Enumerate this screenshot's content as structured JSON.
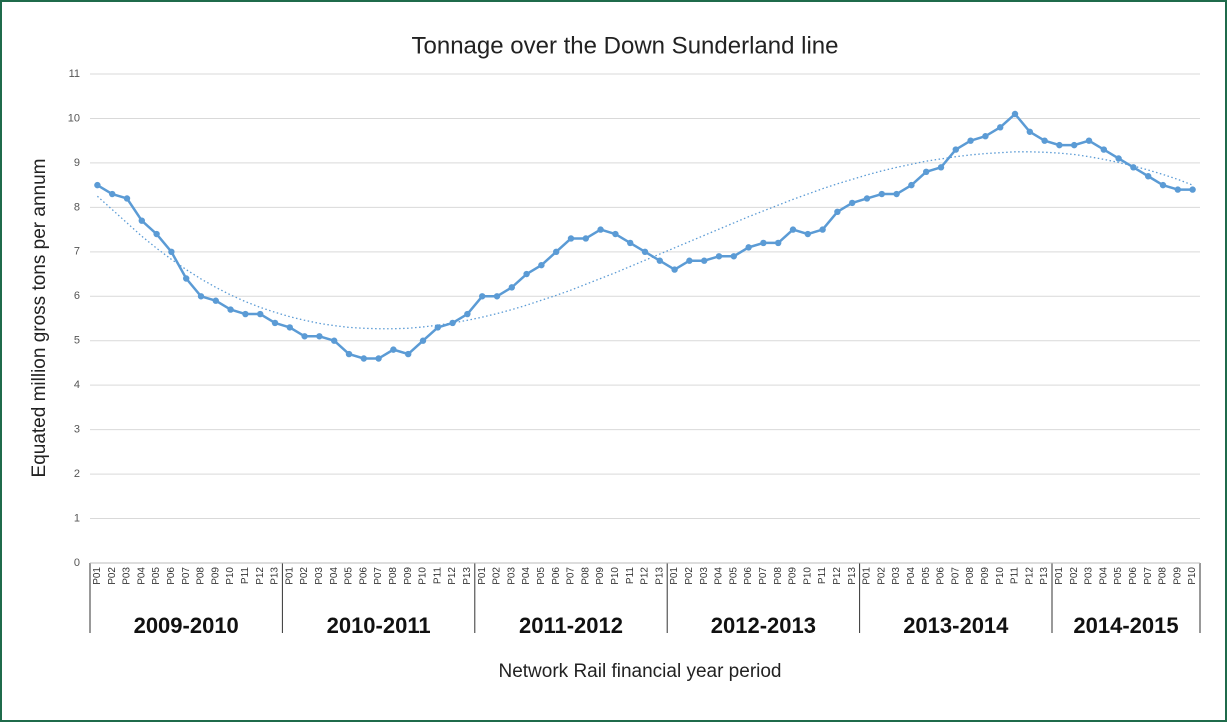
{
  "chart_data": {
    "type": "line",
    "title": "Tonnage over the Down Sunderland line",
    "y_label": "Equated million gross tons per annum",
    "x_label": "Network Rail financial year period",
    "group_labels": [
      "2009-2010",
      "2010-2011",
      "2011-2012",
      "2012-2013",
      "2013-2014",
      "2014-2015"
    ],
    "categories": [
      "P01",
      "P02",
      "P03",
      "P04",
      "P05",
      "P06",
      "P07",
      "P08",
      "P09",
      "P10",
      "P11",
      "P12",
      "P13",
      "P01",
      "P02",
      "P03",
      "P04",
      "P05",
      "P06",
      "P07",
      "P08",
      "P09",
      "P10",
      "P11",
      "P12",
      "P13",
      "P01",
      "P02",
      "P03",
      "P04",
      "P05",
      "P06",
      "P07",
      "P08",
      "P09",
      "P10",
      "P11",
      "P12",
      "P13",
      "P01",
      "P02",
      "P03",
      "P04",
      "P05",
      "P06",
      "P07",
      "P08",
      "P09",
      "P10",
      "P11",
      "P12",
      "P13",
      "P01",
      "P02",
      "P03",
      "P04",
      "P05",
      "P06",
      "P07",
      "P08",
      "P09",
      "P10",
      "P11",
      "P12",
      "P13",
      "P01",
      "P02",
      "P03",
      "P04",
      "P05",
      "P06",
      "P07",
      "P08",
      "P09",
      "P10"
    ],
    "series": [
      {
        "color": "#5b9bd5",
        "style": "solid",
        "markers": true,
        "values": [
          8.5,
          8.3,
          8.2,
          7.7,
          7.4,
          7.0,
          6.4,
          6.0,
          5.9,
          5.7,
          5.6,
          5.6,
          5.4,
          5.3,
          5.1,
          5.1,
          5.0,
          4.7,
          4.6,
          4.6,
          4.8,
          4.7,
          5.0,
          5.3,
          5.4,
          5.6,
          6.0,
          6.0,
          6.2,
          6.5,
          6.7,
          7.0,
          7.3,
          7.3,
          7.5,
          7.4,
          7.2,
          7.0,
          6.8,
          6.6,
          6.8,
          6.8,
          6.9,
          6.9,
          7.1,
          7.2,
          7.2,
          7.5,
          7.4,
          7.5,
          7.9,
          8.1,
          8.2,
          8.3,
          8.3,
          8.5,
          8.8,
          8.9,
          9.3,
          9.5,
          9.6,
          9.8,
          10.1,
          9.7,
          9.5,
          9.4,
          9.4,
          9.5,
          9.3,
          9.1,
          8.9,
          8.7,
          8.5,
          8.4,
          8.4
        ]
      },
      {
        "color": "#5b9bd5",
        "style": "dotted",
        "markers": false,
        "values": [
          8.25,
          7.95,
          7.65,
          7.35,
          7.08,
          6.83,
          6.6,
          6.39,
          6.2,
          6.03,
          5.88,
          5.75,
          5.64,
          5.54,
          5.46,
          5.39,
          5.34,
          5.3,
          5.28,
          5.27,
          5.27,
          5.28,
          5.31,
          5.35,
          5.4,
          5.46,
          5.53,
          5.61,
          5.7,
          5.8,
          5.91,
          6.02,
          6.14,
          6.27,
          6.4,
          6.53,
          6.67,
          6.81,
          6.95,
          7.09,
          7.23,
          7.37,
          7.51,
          7.65,
          7.79,
          7.92,
          8.05,
          8.18,
          8.3,
          8.42,
          8.53,
          8.63,
          8.73,
          8.82,
          8.9,
          8.97,
          9.04,
          9.09,
          9.14,
          9.18,
          9.21,
          9.23,
          9.25,
          9.25,
          9.24,
          9.22,
          9.19,
          9.14,
          9.08,
          9.01,
          8.93,
          8.84,
          8.74,
          8.63,
          8.5
        ]
      }
    ],
    "ylim": [
      0,
      11
    ],
    "yticks": [
      0,
      1,
      2,
      3,
      4,
      5,
      6,
      7,
      8,
      9,
      10,
      11
    ],
    "grid": true
  }
}
